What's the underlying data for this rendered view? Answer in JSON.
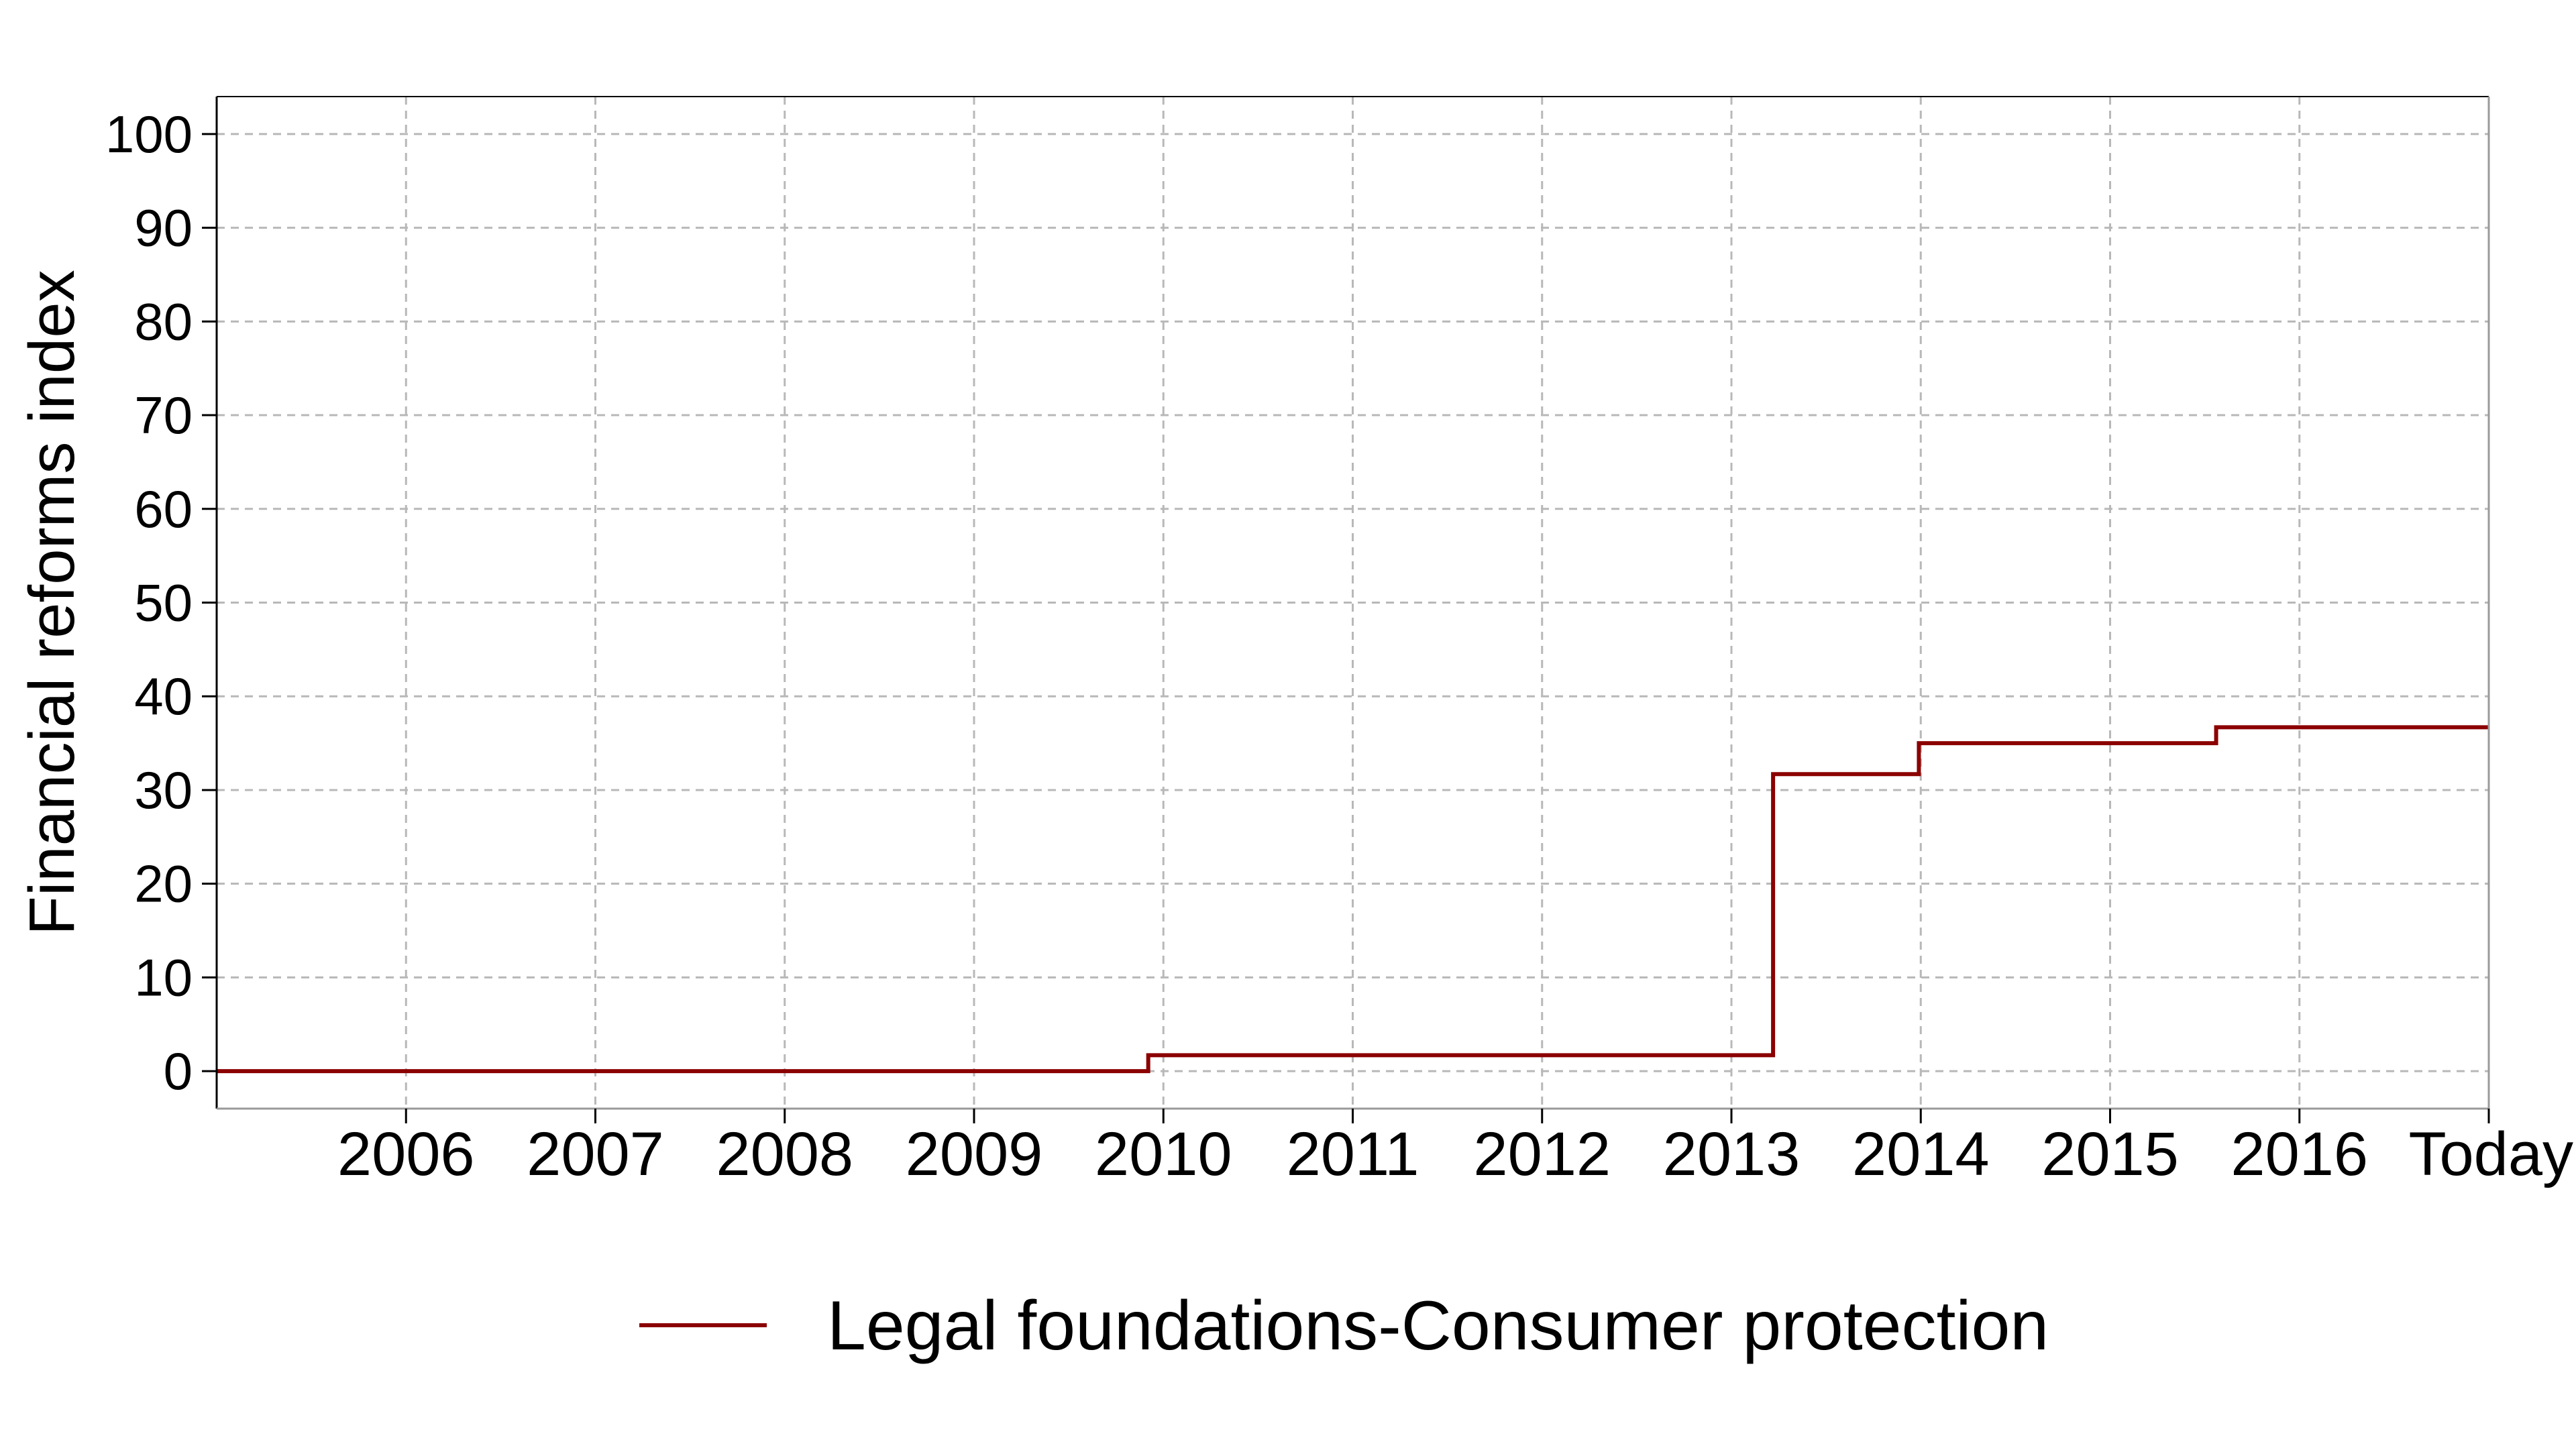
{
  "chart_data": {
    "type": "line",
    "step": true,
    "title": "",
    "xlabel": "",
    "ylabel": "Financial reforms index",
    "ylim": [
      -4,
      104
    ],
    "yticks": [
      0,
      10,
      20,
      30,
      40,
      50,
      60,
      70,
      80,
      90,
      100
    ],
    "xlim": [
      2005,
      2017
    ],
    "xticks": [
      {
        "value": 2006,
        "label": "2006"
      },
      {
        "value": 2007,
        "label": "2007"
      },
      {
        "value": 2008,
        "label": "2008"
      },
      {
        "value": 2009,
        "label": "2009"
      },
      {
        "value": 2010,
        "label": "2010"
      },
      {
        "value": 2011,
        "label": "2011"
      },
      {
        "value": 2012,
        "label": "2012"
      },
      {
        "value": 2013,
        "label": "2013"
      },
      {
        "value": 2014,
        "label": "2014"
      },
      {
        "value": 2015,
        "label": "2015"
      },
      {
        "value": 2016,
        "label": "2016"
      },
      {
        "value": 2017,
        "label": "Today"
      }
    ],
    "grid": true,
    "legend_position": "bottom",
    "series": [
      {
        "name": "Legal foundations-Consumer protection",
        "color": "#8b0000",
        "x": [
          2005,
          2009.92,
          2013.22,
          2013.99,
          2015.56,
          2017
        ],
        "y": [
          0,
          1.7,
          31.7,
          35.0,
          36.7,
          36.7
        ]
      }
    ]
  }
}
